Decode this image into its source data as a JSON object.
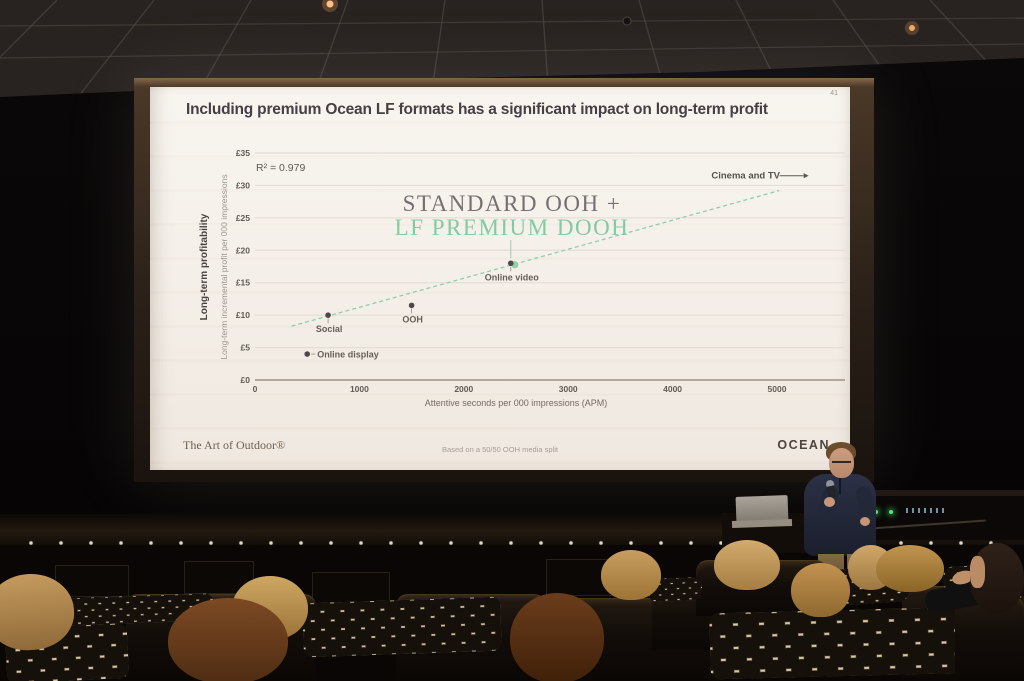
{
  "slide": {
    "page_number": "41",
    "title": "Including premium Ocean LF formats has a significant impact on long-term profit",
    "footer_left": "The Art of Outdoor®",
    "footer_center": "Based on a 50/50 OOH media split",
    "footer_right": "OCEAN"
  },
  "chart_data": {
    "type": "scatter",
    "xlabel": "Attentive seconds per 000 impressions (APM)",
    "ylabel_primary": "Long-term profitability",
    "ylabel_secondary": "Long-term incremental profit per 000 impressions",
    "xlim": [
      0,
      5000
    ],
    "ylim": [
      0,
      35
    ],
    "x_ticks": [
      0,
      1000,
      2000,
      3000,
      4000,
      5000
    ],
    "y_ticks": [
      0,
      5,
      10,
      15,
      20,
      25,
      30,
      35
    ],
    "y_tick_prefix": "£",
    "grid": true,
    "r_squared": "R² = 0.979",
    "annotation": {
      "line1": "STANDARD OOH +",
      "line2": "LF PREMIUM DOOH"
    },
    "points": [
      {
        "label": "Online display",
        "x": 500,
        "y": 4,
        "label_placement": "right"
      },
      {
        "label": "Social",
        "x": 700,
        "y": 10,
        "label_placement": "below"
      },
      {
        "label": "OOH",
        "x": 1500,
        "y": 11.5,
        "label_placement": "below"
      },
      {
        "label": "Online video",
        "x": 2450,
        "y": 18,
        "label_placement": "below",
        "highlighted": true
      }
    ],
    "trend_line": {
      "x1": 350,
      "y1": 8.3,
      "x2": 5020,
      "y2": 29.2,
      "style": "dashed"
    },
    "offchart_annotation": {
      "label": "Cinema and TV",
      "x": 4700,
      "y": 31.5,
      "arrow": "right"
    },
    "colors": {
      "accent_green": "#86cfa6",
      "green_text": "#7cc9a0",
      "point_dark": "#453e41",
      "grid": "#e3d8d0",
      "axis": "#8a7a6e",
      "label_gray": "#5a514b",
      "annotation_gray": "#6f686b",
      "slide_bg": "#f4efe8"
    }
  }
}
